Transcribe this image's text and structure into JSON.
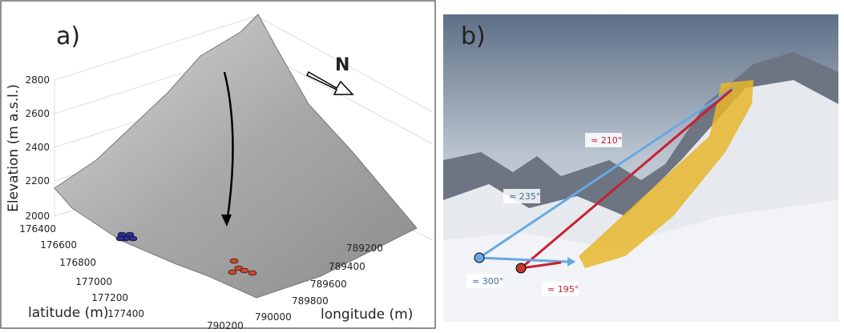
{
  "panel_a": {
    "label": "a)",
    "z_axis_label": "Elevation (m a.s.l.)",
    "z_ticks": [
      "2000",
      "2200",
      "2400",
      "2600",
      "2800"
    ],
    "y_axis_label": "latitude (m)",
    "y_ticks": [
      "176400",
      "176600",
      "176800",
      "177000",
      "177200",
      "177400"
    ],
    "x_axis_label": "longitude (m)",
    "x_ticks": [
      "789200",
      "789400",
      "789600",
      "789800",
      "790000",
      "790200"
    ],
    "north": "N"
  },
  "panel_b": {
    "label": "b)",
    "annotations": [
      "≈ 210°",
      "≈ 235°",
      "≈ 300°",
      "≈ 195°"
    ]
  }
}
